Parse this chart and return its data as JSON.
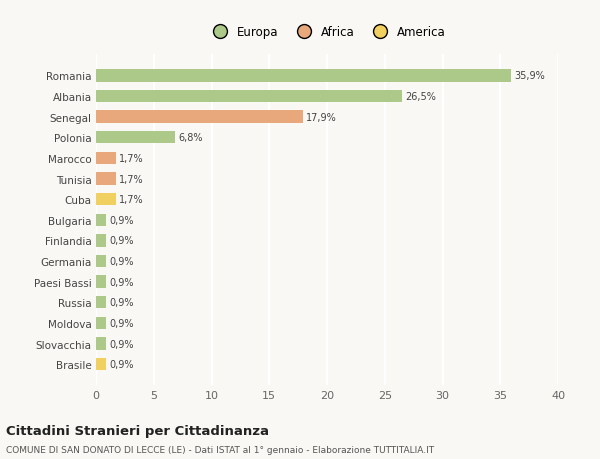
{
  "countries": [
    "Romania",
    "Albania",
    "Senegal",
    "Polonia",
    "Marocco",
    "Tunisia",
    "Cuba",
    "Bulgaria",
    "Finlandia",
    "Germania",
    "Paesi Bassi",
    "Russia",
    "Moldova",
    "Slovacchia",
    "Brasile"
  ],
  "values": [
    35.9,
    26.5,
    17.9,
    6.8,
    1.7,
    1.7,
    1.7,
    0.9,
    0.9,
    0.9,
    0.9,
    0.9,
    0.9,
    0.9,
    0.9
  ],
  "labels": [
    "35,9%",
    "26,5%",
    "17,9%",
    "6,8%",
    "1,7%",
    "1,7%",
    "1,7%",
    "0,9%",
    "0,9%",
    "0,9%",
    "0,9%",
    "0,9%",
    "0,9%",
    "0,9%",
    "0,9%"
  ],
  "continents": [
    "Europa",
    "Europa",
    "Africa",
    "Europa",
    "Africa",
    "Africa",
    "America",
    "Europa",
    "Europa",
    "Europa",
    "Europa",
    "Europa",
    "Europa",
    "Europa",
    "America"
  ],
  "colors": {
    "Europa": "#adc98a",
    "Africa": "#e8a87c",
    "America": "#f0d060"
  },
  "xlim": [
    0,
    40
  ],
  "xticks": [
    0,
    5,
    10,
    15,
    20,
    25,
    30,
    35,
    40
  ],
  "title": "Cittadini Stranieri per Cittadinanza",
  "subtitle": "COMUNE DI SAN DONATO DI LECCE (LE) - Dati ISTAT al 1° gennaio - Elaborazione TUTTITALIA.IT",
  "background_color": "#f9f8f4",
  "grid_color": "#ffffff",
  "bar_height": 0.6,
  "figsize": [
    6.0,
    4.6
  ],
  "dpi": 100
}
